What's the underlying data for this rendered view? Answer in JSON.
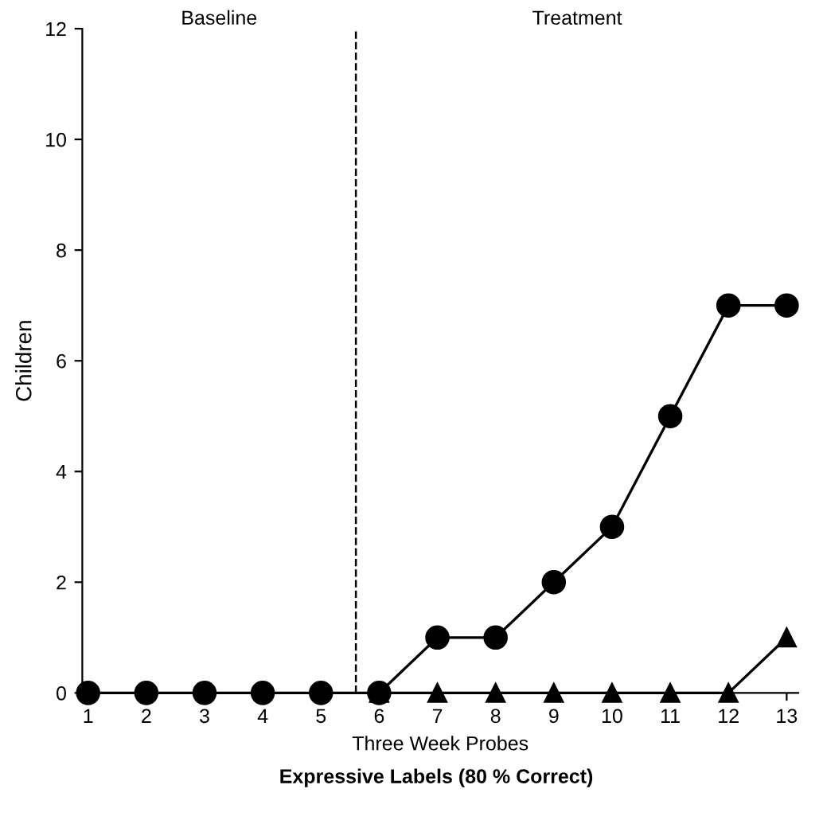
{
  "chart_data": {
    "type": "line",
    "title": "Expressive Labels (80 % Correct)",
    "xlabel": "Three Week Probes",
    "ylabel": "Children",
    "x": [
      1,
      2,
      3,
      4,
      5,
      6,
      7,
      8,
      9,
      10,
      11,
      12,
      13
    ],
    "series": [
      {
        "color": "#000000",
        "marker": "circle",
        "values": [
          0,
          0,
          0,
          0,
          0,
          0,
          1,
          1,
          2,
          3,
          5,
          7,
          7
        ]
      },
      {
        "color": "#000000",
        "marker": "triangle",
        "values": [
          null,
          null,
          null,
          null,
          null,
          0,
          0,
          0,
          0,
          0,
          0,
          0,
          1
        ]
      }
    ],
    "xlim": [
      0.9,
      13.2
    ],
    "xticks": [
      1,
      2,
      3,
      4,
      5,
      6,
      7,
      8,
      9,
      10,
      11,
      12,
      13
    ],
    "ylim": [
      0,
      12
    ],
    "yticks": [
      0,
      2,
      4,
      6,
      8,
      10,
      12
    ],
    "ref_lines": [
      {
        "axis": "x",
        "value": 5.6,
        "line_style": "dashed",
        "color": "#000000"
      }
    ],
    "annotations": [
      "Baseline",
      "Treatment"
    ],
    "grid": false,
    "line_style": "solid"
  }
}
